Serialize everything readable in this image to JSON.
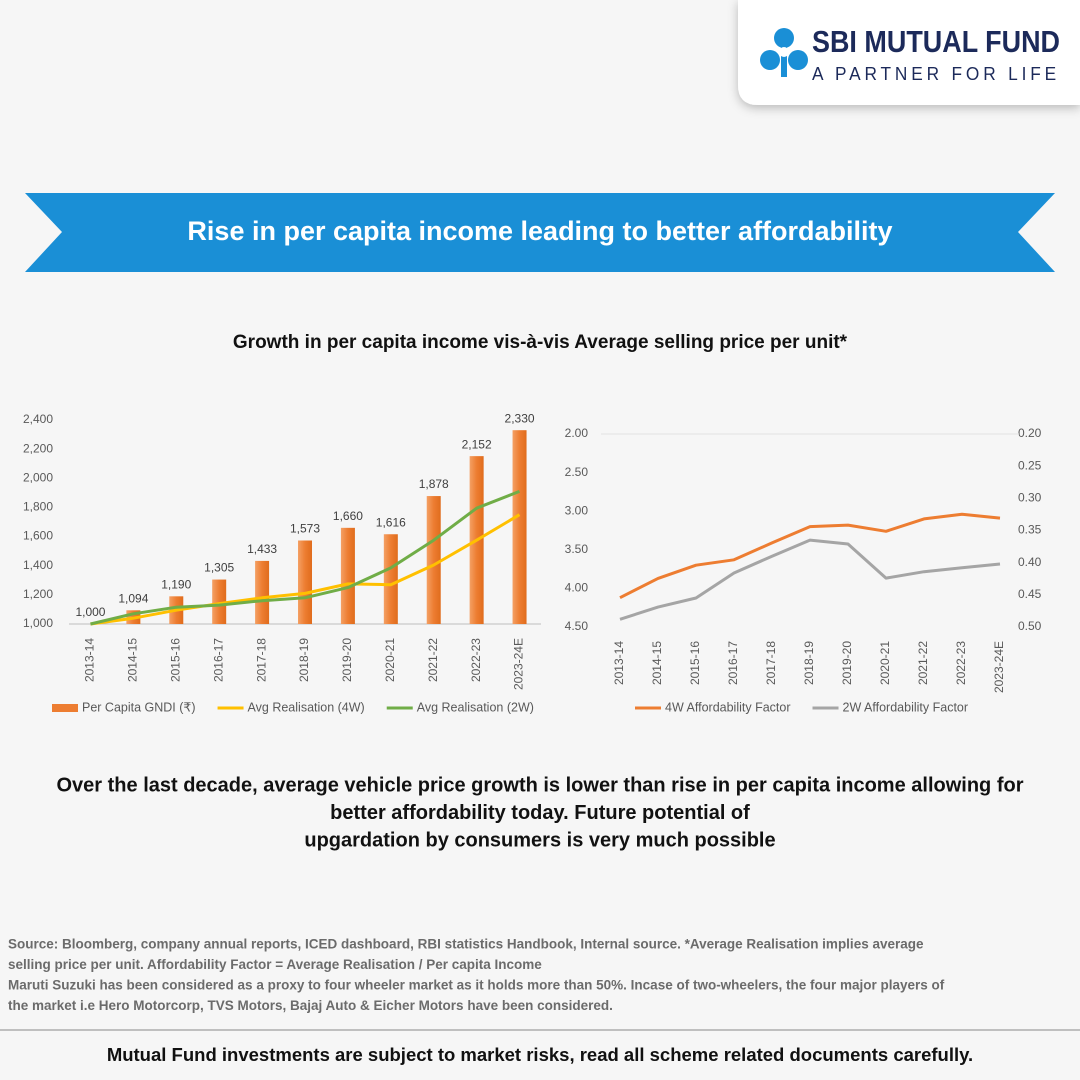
{
  "logo": {
    "name": "SBI MUTUAL FUND",
    "tagline": "A PARTNER FOR LIFE"
  },
  "banner": "Rise in per capita income leading to better affordability",
  "heading": "Growth in per capita income vis-à-vis Average selling price per unit*",
  "chart_data": [
    {
      "type": "combo",
      "categories": [
        "2013-14",
        "2014-15",
        "2015-16",
        "2016-17",
        "2017-18",
        "2018-19",
        "2019-20",
        "2020-21",
        "2021-22",
        "2022-23",
        "2023-24E"
      ],
      "series": [
        {
          "name": "Per Capita GNDI (₹)",
          "type": "bar",
          "color": "#ed7d31",
          "values": [
            1000,
            1094,
            1190,
            1305,
            1433,
            1573,
            1660,
            1616,
            1878,
            2152,
            2330
          ],
          "value_labels": [
            "1,000",
            "1,094",
            "1,190",
            "1,305",
            "1,433",
            "1,573",
            "1,660",
            "1,616",
            "1,878",
            "2,152",
            "2,330"
          ]
        },
        {
          "name": "Avg Realisation (4W)",
          "type": "line",
          "color": "#ffc000",
          "values": [
            1000,
            1040,
            1095,
            1140,
            1180,
            1210,
            1275,
            1270,
            1405,
            1575,
            1750
          ]
        },
        {
          "name": "Avg Realisation (2W)",
          "type": "line",
          "color": "#70ad47",
          "values": [
            1000,
            1070,
            1115,
            1130,
            1160,
            1180,
            1250,
            1385,
            1575,
            1795,
            1910
          ]
        }
      ],
      "ylim": [
        1000,
        2400
      ],
      "yticks": [
        {
          "value": 1000,
          "label": "1,000"
        },
        {
          "value": 1200,
          "label": "1,200"
        },
        {
          "value": 1400,
          "label": "1,400"
        },
        {
          "value": 1600,
          "label": "1,600"
        },
        {
          "value": 1800,
          "label": "1,800"
        },
        {
          "value": 2000,
          "label": "2,000"
        },
        {
          "value": 2200,
          "label": "2,200"
        },
        {
          "value": 2400,
          "label": "2,400"
        }
      ],
      "legend": "bottom"
    },
    {
      "type": "line",
      "categories": [
        "2013-14",
        "2014-15",
        "2015-16",
        "2016-17",
        "2017-18",
        "2018-19",
        "2019-20",
        "2020-21",
        "2021-22",
        "2022-23",
        "2023-24E"
      ],
      "series": [
        {
          "name": "4W Affordability Factor",
          "color": "#ed7d31",
          "values": [
            4.12,
            3.87,
            3.7,
            3.63,
            3.41,
            3.2,
            3.18,
            3.26,
            3.1,
            3.04,
            3.09
          ]
        },
        {
          "name": "2W Affordability Factor",
          "color": "#a5a5a5",
          "axis": "y2",
          "values": [
            0.488,
            0.469,
            0.455,
            0.416,
            0.39,
            0.365,
            0.371,
            0.424,
            0.414,
            0.408,
            0.402
          ]
        }
      ],
      "ylim": [
        4.5,
        2.0
      ],
      "yticks": [
        {
          "value": 2.0,
          "label": "2.00"
        },
        {
          "value": 2.5,
          "label": "2.50"
        },
        {
          "value": 3.0,
          "label": "3.00"
        },
        {
          "value": 3.5,
          "label": "3.50"
        },
        {
          "value": 4.0,
          "label": "4.00"
        },
        {
          "value": 4.5,
          "label": "4.50"
        }
      ],
      "y2lim": [
        0.5,
        0.2
      ],
      "y2ticks": [
        {
          "value": 0.2,
          "label": "0.20"
        },
        {
          "value": 0.25,
          "label": "0.25"
        },
        {
          "value": 0.3,
          "label": "0.30"
        },
        {
          "value": 0.35,
          "label": "0.35"
        },
        {
          "value": 0.4,
          "label": "0.40"
        },
        {
          "value": 0.45,
          "label": "0.45"
        },
        {
          "value": 0.5,
          "label": "0.50"
        }
      ],
      "legend": "bottom"
    }
  ],
  "conclusion": [
    "Over the last decade, average vehicle price growth is lower than rise in per capita income allowing for",
    "better affordability today. Future potential of",
    "upgardation by consumers is very much possible"
  ],
  "footnotes": [
    "Source: Bloomberg, company annual reports, ICED dashboard, RBI statistics Handbook, Internal source. *Average Realisation implies average",
    "selling price per unit. Affordability Factor = Average Realisation / Per capita Income",
    "Maruti Suzuki has been considered as a proxy to four wheeler market as it holds more than 50%. Incase of two-wheelers, the four major players of",
    "the market i.e Hero Motorcorp, TVS Motors, Bajaj Auto & Eicher Motors have been considered."
  ],
  "disclaimer": "Mutual Fund investments are subject to market risks, read all scheme related documents carefully."
}
